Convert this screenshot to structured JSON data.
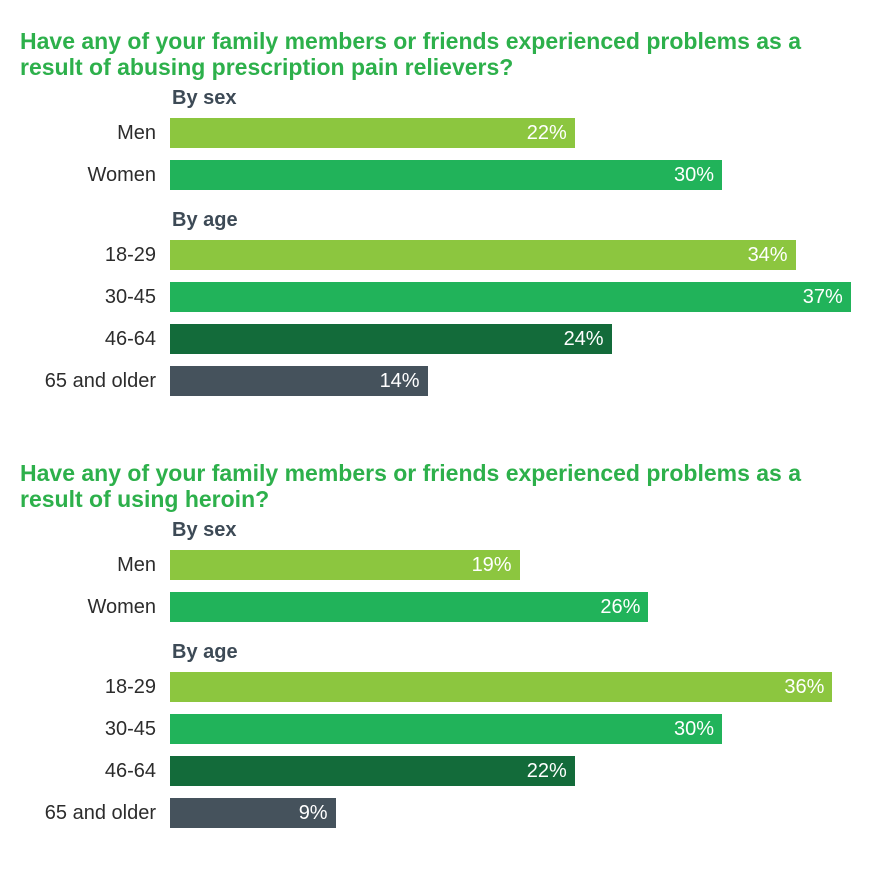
{
  "colors": {
    "title": "#2db04b",
    "group_label": "#3d4a56",
    "light_green": "#8cc63f",
    "mid_green": "#21b35a",
    "dark_green": "#136b3a",
    "slate": "#45525c"
  },
  "chart_data": [
    {
      "type": "bar",
      "title": "Have any of your family members or friends experienced problems as a result of abusing prescription pain relievers?",
      "unit": "%",
      "groups": [
        {
          "label": "By sex",
          "categories": [
            "Men",
            "Women"
          ],
          "values": [
            22,
            30
          ],
          "value_labels": [
            "22%",
            "30%"
          ],
          "colors": [
            "#8cc63f",
            "#21b35a"
          ]
        },
        {
          "label": "By age",
          "categories": [
            "18-29",
            "30-45",
            "46-64",
            "65 and older"
          ],
          "values": [
            34,
            37,
            24,
            14
          ],
          "value_labels": [
            "34%",
            "37%",
            "24%",
            "14%"
          ],
          "colors": [
            "#8cc63f",
            "#21b35a",
            "#136b3a",
            "#45525c"
          ]
        }
      ]
    },
    {
      "type": "bar",
      "title": "Have any of your family members or friends experienced problems as a result of using heroin?",
      "unit": "%",
      "groups": [
        {
          "label": "By sex",
          "categories": [
            "Men",
            "Women"
          ],
          "values": [
            19,
            26
          ],
          "value_labels": [
            "19%",
            "26%"
          ],
          "colors": [
            "#8cc63f",
            "#21b35a"
          ]
        },
        {
          "label": "By age",
          "categories": [
            "18-29",
            "30-45",
            "46-64",
            "65 and older"
          ],
          "values": [
            36,
            30,
            22,
            9
          ],
          "value_labels": [
            "36%",
            "30%",
            "22%",
            "9%"
          ],
          "colors": [
            "#8cc63f",
            "#21b35a",
            "#136b3a",
            "#45525c"
          ]
        }
      ]
    }
  ]
}
